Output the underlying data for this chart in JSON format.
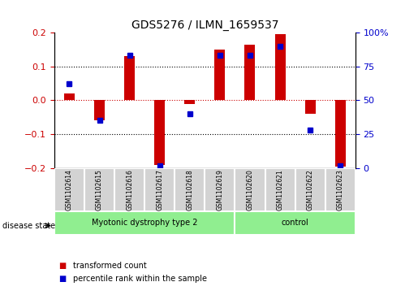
{
  "title": "GDS5276 / ILMN_1659537",
  "samples": [
    "GSM1102614",
    "GSM1102615",
    "GSM1102616",
    "GSM1102617",
    "GSM1102618",
    "GSM1102619",
    "GSM1102620",
    "GSM1102621",
    "GSM1102622",
    "GSM1102623"
  ],
  "transformed_count": [
    0.02,
    -0.06,
    0.13,
    -0.19,
    -0.01,
    0.15,
    0.165,
    0.195,
    -0.04,
    -0.195
  ],
  "percentile_rank": [
    62,
    35,
    83,
    2,
    40,
    83,
    83,
    90,
    28,
    2
  ],
  "ylim": [
    -0.2,
    0.2
  ],
  "yticks_left": [
    -0.2,
    -0.1,
    0,
    0.1,
    0.2
  ],
  "yticks_right": [
    0,
    25,
    50,
    75,
    100
  ],
  "disease_state_label": "disease state",
  "bar_color": "#cc0000",
  "dot_color": "#0000cc",
  "zero_line_color": "#cc0000",
  "bg_color": "#ffffff",
  "plot_bg_color": "#ffffff",
  "sample_box_color": "#d3d3d3",
  "group1_label": "Myotonic dystrophy type 2",
  "group1_count": 6,
  "group2_label": "control",
  "group2_count": 4,
  "group_color": "#90ee90",
  "legend_label1": "transformed count",
  "legend_label2": "percentile rank within the sample",
  "legend_color1": "#cc0000",
  "legend_color2": "#0000cc"
}
